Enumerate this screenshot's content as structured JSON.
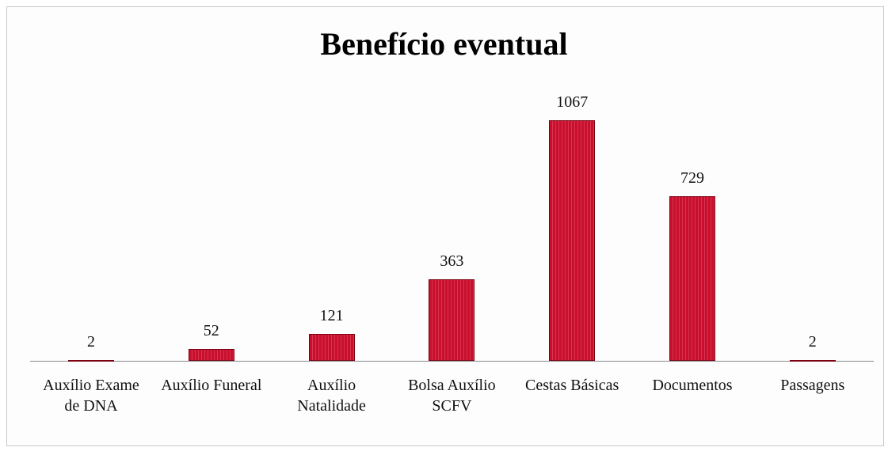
{
  "chart_data": {
    "type": "bar",
    "title": "Benefício eventual",
    "categories": [
      "Auxílio Exame de DNA",
      "Auxílio Funeral",
      "Auxílio Natalidade",
      "Bolsa Auxílio SCFV",
      "Cestas Básicas",
      "Documentos",
      "Passagens"
    ],
    "values": [
      2,
      52,
      121,
      363,
      1067,
      729,
      2
    ],
    "color": "#c8102e"
  }
}
